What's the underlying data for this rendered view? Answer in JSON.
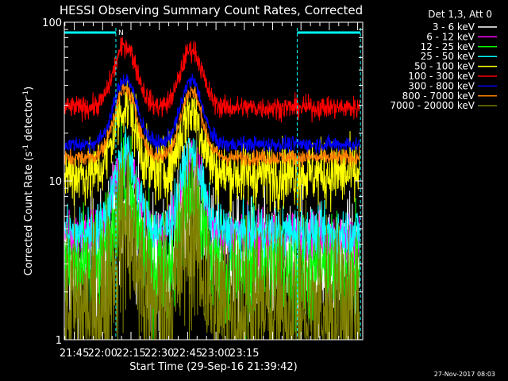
{
  "chart_data": {
    "type": "line",
    "title": "HESSI Observing Summary Count Rates, Corrected",
    "xlabel": "Start Time (29-Sep-16 21:39:42)",
    "ylabel": "Corrected Count Rate (s",
    "ylabel_sup1": "-1",
    "ylabel_mid": " detector",
    "ylabel_sup2": "-1",
    "ylabel_end": ")",
    "yscale": "log",
    "ylim": [
      1,
      100
    ],
    "xlim_minutes": [
      39.7,
      197.7
    ],
    "y_ticks": [
      {
        "value": 1,
        "label": "1"
      },
      {
        "value": 10,
        "label": "10"
      },
      {
        "value": 100,
        "label": "100"
      }
    ],
    "x_ticks": [
      {
        "minute": 45,
        "label": "21:45"
      },
      {
        "minute": 60,
        "label": "22:00"
      },
      {
        "minute": 75,
        "label": "22:15"
      },
      {
        "minute": 90,
        "label": "22:30"
      },
      {
        "minute": 105,
        "label": "22:45"
      },
      {
        "minute": 120,
        "label": "23:00"
      },
      {
        "minute": 135,
        "label": "23:15"
      }
    ],
    "legend_header": "Det 1,3, Att 0",
    "legend_position": "right",
    "flags": {
      "marker_label": "N",
      "segments": [
        [
          39.7,
          67.0
        ],
        [
          163.0,
          196.5
        ]
      ],
      "dashed_lines_minutes": [
        67.0,
        163.0,
        196.5
      ]
    },
    "series": [
      {
        "name": "3 - 6 keV",
        "color": "#ffffff",
        "base": 3.0,
        "peak1": 8,
        "peak2": 8,
        "noise": 0.4
      },
      {
        "name": "6 - 12 keV",
        "color": "#ff00ff",
        "base": 4.5,
        "peak1": 15,
        "peak2": 14,
        "noise": 0.15
      },
      {
        "name": "12 - 25 keV",
        "color": "#00ff00",
        "base": 2.7,
        "peak1": 9,
        "peak2": 8,
        "noise": 0.35
      },
      {
        "name": "25 - 50 keV",
        "color": "#00ffff",
        "base": 4.8,
        "peak1": 15,
        "peak2": 15,
        "noise": 0.15
      },
      {
        "name": "50 - 100 keV",
        "color": "#ffff00",
        "base": 11,
        "peak1": 30,
        "peak2": 28,
        "noise": 0.2
      },
      {
        "name": "100 - 300 keV",
        "color": "#ff0000",
        "base": 29,
        "peak1": 72,
        "peak2": 68,
        "noise": 0.07
      },
      {
        "name": "300 - 800 keV",
        "color": "#0000ff",
        "base": 17,
        "peak1": 44,
        "peak2": 43,
        "noise": 0.05
      },
      {
        "name": "800 - 7000 keV",
        "color": "#ff8000",
        "base": 14,
        "peak1": 38,
        "peak2": 37,
        "noise": 0.05
      },
      {
        "name": "7000 - 20000 keV",
        "color": "#808000",
        "base": 1.5,
        "peak1": 5,
        "peak2": 4.5,
        "noise": 0.6
      }
    ],
    "peak_minutes": [
      72,
      107
    ],
    "data_range_minutes": [
      40,
      196
    ]
  },
  "footer": {
    "timestamp": "27-Nov-2017 08:03"
  }
}
